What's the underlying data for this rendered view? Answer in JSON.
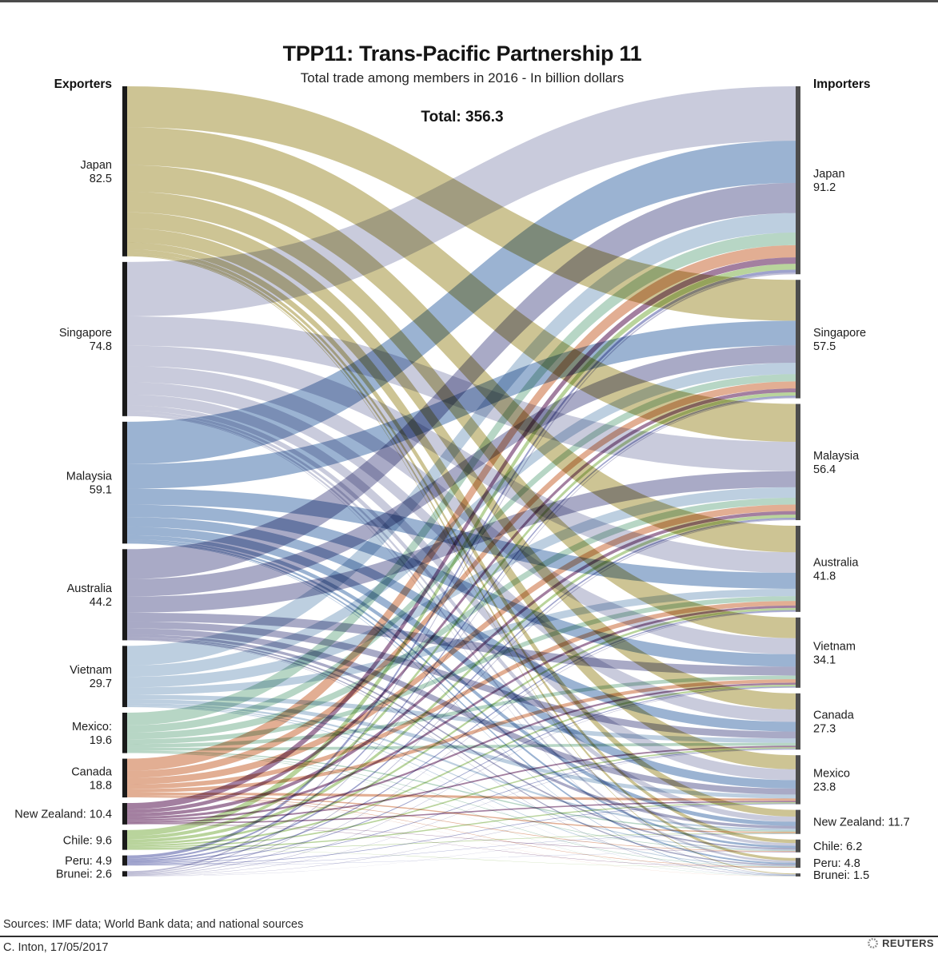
{
  "chart_data": {
    "type": "sankey",
    "title": "TPP11: Trans-Pacific Partnership 11",
    "subtitle": "Total trade among members in 2016 - In billion dollars",
    "total_label": "Total: 356.3",
    "total_value": 356.3,
    "left_header": "Exporters",
    "right_header": "Importers",
    "bar_colors": {
      "exporter": "#1a1a1a",
      "importer": "#4d4d4d"
    },
    "exporters": [
      {
        "name": "Japan",
        "label": "Japan",
        "value": 82.5,
        "display": "82.5",
        "inline": false,
        "color": "#cdc494"
      },
      {
        "name": "Singapore",
        "label": "Singapore",
        "value": 74.8,
        "display": "74.8",
        "inline": false,
        "color": "#c9cbdc"
      },
      {
        "name": "Malaysia",
        "label": "Malaysia",
        "value": 59.1,
        "display": "59.1",
        "inline": false,
        "color": "#9bb3d2"
      },
      {
        "name": "Australia",
        "label": "Australia",
        "value": 44.2,
        "display": "44.2",
        "inline": false,
        "color": "#a9aac6"
      },
      {
        "name": "Vietnam",
        "label": "Vietnam",
        "value": 29.7,
        "display": "29.7",
        "inline": false,
        "color": "#bdcfe0"
      },
      {
        "name": "Mexico",
        "label": "Mexico:",
        "value": 19.6,
        "display": "19.6",
        "inline": false,
        "color": "#b7d6c5"
      },
      {
        "name": "Canada",
        "label": "Canada",
        "value": 18.8,
        "display": "18.8",
        "inline": false,
        "color": "#e2ae93"
      },
      {
        "name": "New Zealand",
        "label": "New Zealand:",
        "value": 10.4,
        "display": "10.4",
        "inline": true,
        "color": "#a37fa0"
      },
      {
        "name": "Chile",
        "label": "Chile:",
        "value": 9.6,
        "display": "9.6",
        "inline": true,
        "color": "#b9d49c"
      },
      {
        "name": "Peru",
        "label": "Peru:",
        "value": 4.9,
        "display": "4.9",
        "inline": true,
        "color": "#9fa3cd"
      },
      {
        "name": "Brunei",
        "label": "Brunei:",
        "value": 2.6,
        "display": "2.6",
        "inline": true,
        "color": "#bfbed6"
      }
    ],
    "importers": [
      {
        "name": "Japan",
        "label": "Japan",
        "value": 91.2,
        "display": "91.2",
        "inline": false
      },
      {
        "name": "Singapore",
        "label": "Singapore",
        "value": 57.5,
        "display": "57.5",
        "inline": false
      },
      {
        "name": "Malaysia",
        "label": "Malaysia",
        "value": 56.4,
        "display": "56.4",
        "inline": false
      },
      {
        "name": "Australia",
        "label": "Australia",
        "value": 41.8,
        "display": "41.8",
        "inline": false
      },
      {
        "name": "Vietnam",
        "label": "Vietnam",
        "value": 34.1,
        "display": "34.1",
        "inline": false
      },
      {
        "name": "Canada",
        "label": "Canada",
        "value": 27.3,
        "display": "27.3",
        "inline": false
      },
      {
        "name": "Mexico",
        "label": "Mexico",
        "value": 23.8,
        "display": "23.8",
        "inline": false
      },
      {
        "name": "New Zealand",
        "label": "New Zealand:",
        "value": 11.7,
        "display": "11.7",
        "inline": true
      },
      {
        "name": "Chile",
        "label": "Chile:",
        "value": 6.2,
        "display": "6.2",
        "inline": true
      },
      {
        "name": "Peru",
        "label": "Peru:",
        "value": 4.8,
        "display": "4.8",
        "inline": true
      },
      {
        "name": "Brunei",
        "label": "Brunei:",
        "value": 1.5,
        "display": "1.5",
        "inline": true
      }
    ]
  },
  "footer": {
    "sources": "Sources: IMF data; World Bank data; and national sources",
    "credit": "C. Inton, 17/05/2017",
    "brand": "REUTERS"
  }
}
